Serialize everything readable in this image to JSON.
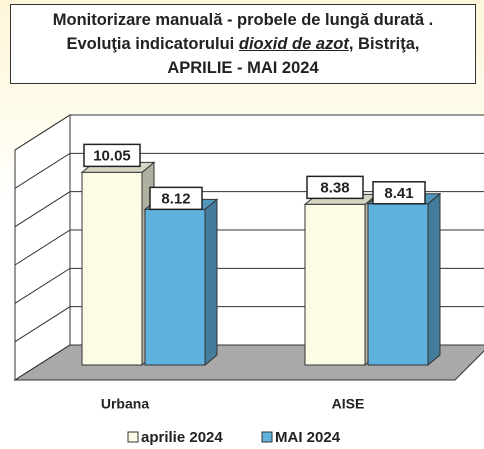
{
  "chart_data": {
    "type": "bar3d",
    "title": [
      "Monitorizare manuală - probele de lungă durată .",
      [
        "Evoluţia indicatorului",
        "dioxid de azot",
        ", Bistriţa,"
      ],
      "APRILIE - MAI 2024"
    ],
    "categories": [
      "Urbana",
      "AISE"
    ],
    "series": [
      {
        "name": "aprilie 2024",
        "color": "#fbfbe6",
        "values": [
          10.05,
          8.38
        ]
      },
      {
        "name": "MAI 2024",
        "color": "#5fb2de",
        "values": [
          8.12,
          8.41
        ]
      }
    ],
    "ylim": [
      0,
      12
    ],
    "yticks": [
      0,
      2,
      4,
      6,
      8,
      10,
      12
    ],
    "grid": true,
    "legend": "bottom"
  }
}
